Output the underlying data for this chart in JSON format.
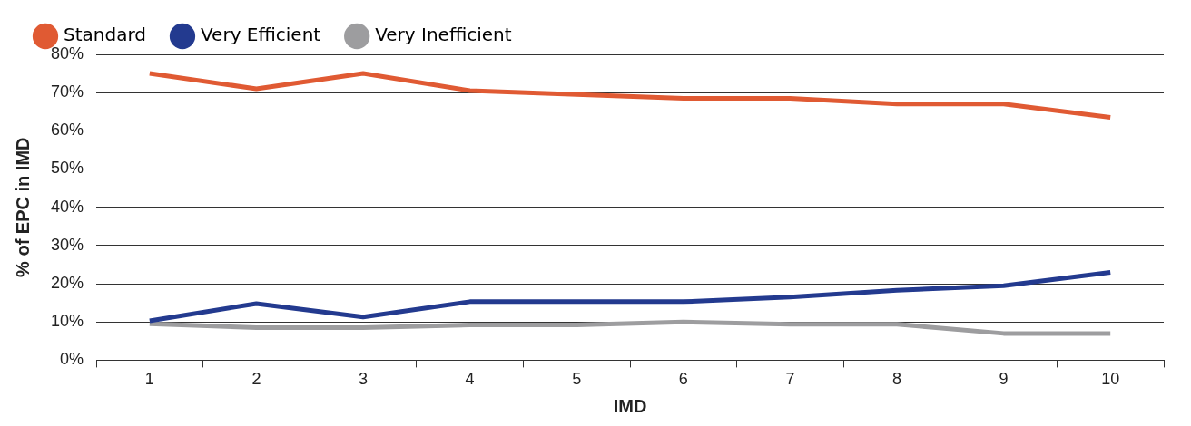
{
  "chart_data": {
    "type": "line",
    "xlabel": "IMD",
    "ylabel": "% of EPC in IMD",
    "categories": [
      "1",
      "2",
      "3",
      "4",
      "5",
      "6",
      "7",
      "8",
      "9",
      "10"
    ],
    "series": [
      {
        "name": "Standard",
        "color": "#e05a33",
        "values": [
          75,
          71,
          75,
          70.5,
          69.5,
          68.5,
          68.5,
          67,
          67,
          63.5
        ]
      },
      {
        "name": "Very Efficient",
        "color": "#233a8f",
        "values": [
          10.3,
          14.8,
          11.3,
          15.3,
          15.3,
          15.3,
          16.5,
          18.3,
          19.5,
          23
        ]
      },
      {
        "name": "Very Inefficient",
        "color": "#9d9d9f",
        "values": [
          9.5,
          8.5,
          8.5,
          9.2,
          9.2,
          10,
          9.4,
          9.4,
          7,
          7
        ]
      }
    ],
    "ylim": [
      0,
      80
    ],
    "yticks": [
      {
        "value": 0,
        "label": "0%"
      },
      {
        "value": 10,
        "label": "10%"
      },
      {
        "value": 20,
        "label": "20%"
      },
      {
        "value": 30,
        "label": "30%"
      },
      {
        "value": 40,
        "label": "40%"
      },
      {
        "value": 50,
        "label": "50%"
      },
      {
        "value": 60,
        "label": "60%"
      },
      {
        "value": 70,
        "label": "70%"
      },
      {
        "value": 80,
        "label": "80%"
      }
    ],
    "grid": "y",
    "legend": "top left",
    "marker": "none",
    "line_style": "solid"
  }
}
